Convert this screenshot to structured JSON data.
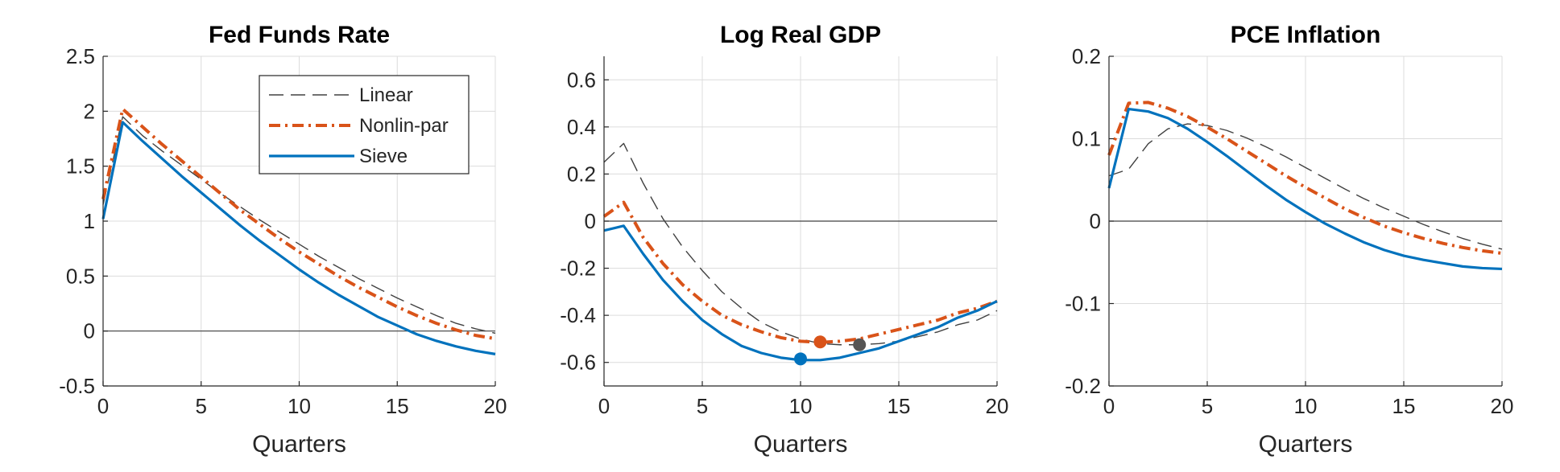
{
  "chart_data": [
    {
      "type": "line",
      "title": "Fed Funds Rate",
      "xlabel": "Quarters",
      "ylabel": "",
      "xlim": [
        0,
        20
      ],
      "ylim": [
        -0.5,
        2.5
      ],
      "xticks": [
        "0",
        "5",
        "10",
        "15",
        "20"
      ],
      "yticks": [
        "-0.5",
        "0",
        "0.5",
        "1",
        "1.5",
        "2",
        "2.5"
      ],
      "grid": true,
      "zero_line": true,
      "legend": {
        "placement": "top-right",
        "entries": [
          "Linear",
          "Nonlin-par",
          "Sieve"
        ]
      },
      "x": [
        0,
        1,
        2,
        3,
        4,
        5,
        6,
        7,
        8,
        9,
        10,
        11,
        12,
        13,
        14,
        15,
        16,
        17,
        18,
        19,
        20
      ],
      "series": [
        {
          "name": "Linear",
          "color": "#404040",
          "style": "dashed",
          "values": [
            1.15,
            1.95,
            1.78,
            1.64,
            1.51,
            1.38,
            1.25,
            1.13,
            1.01,
            0.9,
            0.79,
            0.68,
            0.58,
            0.48,
            0.39,
            0.3,
            0.22,
            0.14,
            0.07,
            0.02,
            -0.02
          ]
        },
        {
          "name": "Nonlin-par",
          "color": "#D95319",
          "style": "dashdot",
          "values": [
            1.2,
            2.02,
            1.86,
            1.7,
            1.55,
            1.4,
            1.25,
            1.1,
            0.97,
            0.84,
            0.72,
            0.61,
            0.5,
            0.4,
            0.31,
            0.22,
            0.14,
            0.07,
            0.01,
            -0.04,
            -0.07
          ]
        },
        {
          "name": "Sieve",
          "color": "#0072BD",
          "style": "solid",
          "values": [
            1.02,
            1.9,
            1.73,
            1.57,
            1.41,
            1.26,
            1.11,
            0.96,
            0.82,
            0.69,
            0.56,
            0.44,
            0.33,
            0.23,
            0.13,
            0.05,
            -0.03,
            -0.09,
            -0.14,
            -0.18,
            -0.21
          ]
        }
      ]
    },
    {
      "type": "line",
      "title": "Log Real GDP",
      "xlabel": "Quarters",
      "ylabel": "",
      "xlim": [
        0,
        20
      ],
      "ylim": [
        -0.7,
        0.7
      ],
      "xticks": [
        "0",
        "5",
        "10",
        "15",
        "20"
      ],
      "yticks": [
        "-0.6",
        "-0.4",
        "-0.2",
        "0",
        "0.2",
        "0.4",
        "0.6"
      ],
      "grid": true,
      "zero_line": true,
      "x": [
        0,
        1,
        2,
        3,
        4,
        5,
        6,
        7,
        8,
        9,
        10,
        11,
        12,
        13,
        14,
        15,
        16,
        17,
        18,
        19,
        20
      ],
      "series": [
        {
          "name": "Linear",
          "color": "#404040",
          "style": "dashed",
          "values": [
            0.25,
            0.33,
            0.16,
            0.01,
            -0.11,
            -0.21,
            -0.3,
            -0.37,
            -0.43,
            -0.47,
            -0.5,
            -0.52,
            -0.525,
            -0.525,
            -0.52,
            -0.51,
            -0.49,
            -0.47,
            -0.44,
            -0.42,
            -0.38
          ]
        },
        {
          "name": "Nonlin-par",
          "color": "#D95319",
          "style": "dashdot",
          "values": [
            0.02,
            0.08,
            -0.07,
            -0.18,
            -0.27,
            -0.34,
            -0.4,
            -0.44,
            -0.47,
            -0.495,
            -0.51,
            -0.515,
            -0.51,
            -0.5,
            -0.48,
            -0.46,
            -0.44,
            -0.42,
            -0.39,
            -0.37,
            -0.34
          ]
        },
        {
          "name": "Sieve",
          "color": "#0072BD",
          "style": "solid",
          "values": [
            -0.04,
            -0.02,
            -0.14,
            -0.25,
            -0.34,
            -0.42,
            -0.48,
            -0.53,
            -0.56,
            -0.58,
            -0.59,
            -0.59,
            -0.58,
            -0.56,
            -0.54,
            -0.51,
            -0.48,
            -0.45,
            -0.41,
            -0.38,
            -0.34
          ]
        }
      ],
      "markers": [
        {
          "series": "Sieve",
          "x": 10,
          "y": -0.585,
          "color": "#0072BD"
        },
        {
          "series": "Nonlin-par",
          "x": 11,
          "y": -0.513,
          "color": "#D95319"
        },
        {
          "series": "Linear",
          "x": 13,
          "y": -0.525,
          "color": "#555555"
        }
      ]
    },
    {
      "type": "line",
      "title": "PCE Inflation",
      "xlabel": "Quarters",
      "ylabel": "",
      "xlim": [
        0,
        20
      ],
      "ylim": [
        -0.2,
        0.2
      ],
      "xticks": [
        "0",
        "5",
        "10",
        "15",
        "20"
      ],
      "yticks": [
        "-0.2",
        "-0.1",
        "0",
        "0.1",
        "0.2"
      ],
      "grid": true,
      "zero_line": true,
      "x": [
        0,
        1,
        2,
        3,
        4,
        5,
        6,
        7,
        8,
        9,
        10,
        11,
        12,
        13,
        14,
        15,
        16,
        17,
        18,
        19,
        20
      ],
      "series": [
        {
          "name": "Linear",
          "color": "#404040",
          "style": "dashed",
          "values": [
            0.055,
            0.063,
            0.094,
            0.112,
            0.118,
            0.116,
            0.11,
            0.101,
            0.09,
            0.078,
            0.065,
            0.052,
            0.039,
            0.027,
            0.016,
            0.006,
            -0.004,
            -0.013,
            -0.021,
            -0.028,
            -0.034
          ]
        },
        {
          "name": "Nonlin-par",
          "color": "#D95319",
          "style": "dashdot",
          "values": [
            0.08,
            0.143,
            0.144,
            0.137,
            0.127,
            0.114,
            0.1,
            0.085,
            0.07,
            0.055,
            0.041,
            0.028,
            0.015,
            0.004,
            -0.006,
            -0.014,
            -0.021,
            -0.027,
            -0.032,
            -0.036,
            -0.039
          ]
        },
        {
          "name": "Sieve",
          "color": "#0072BD",
          "style": "solid",
          "values": [
            0.04,
            0.136,
            0.133,
            0.125,
            0.112,
            0.096,
            0.079,
            0.061,
            0.043,
            0.026,
            0.011,
            -0.003,
            -0.015,
            -0.026,
            -0.035,
            -0.042,
            -0.047,
            -0.051,
            -0.055,
            -0.057,
            -0.058
          ]
        }
      ]
    }
  ]
}
